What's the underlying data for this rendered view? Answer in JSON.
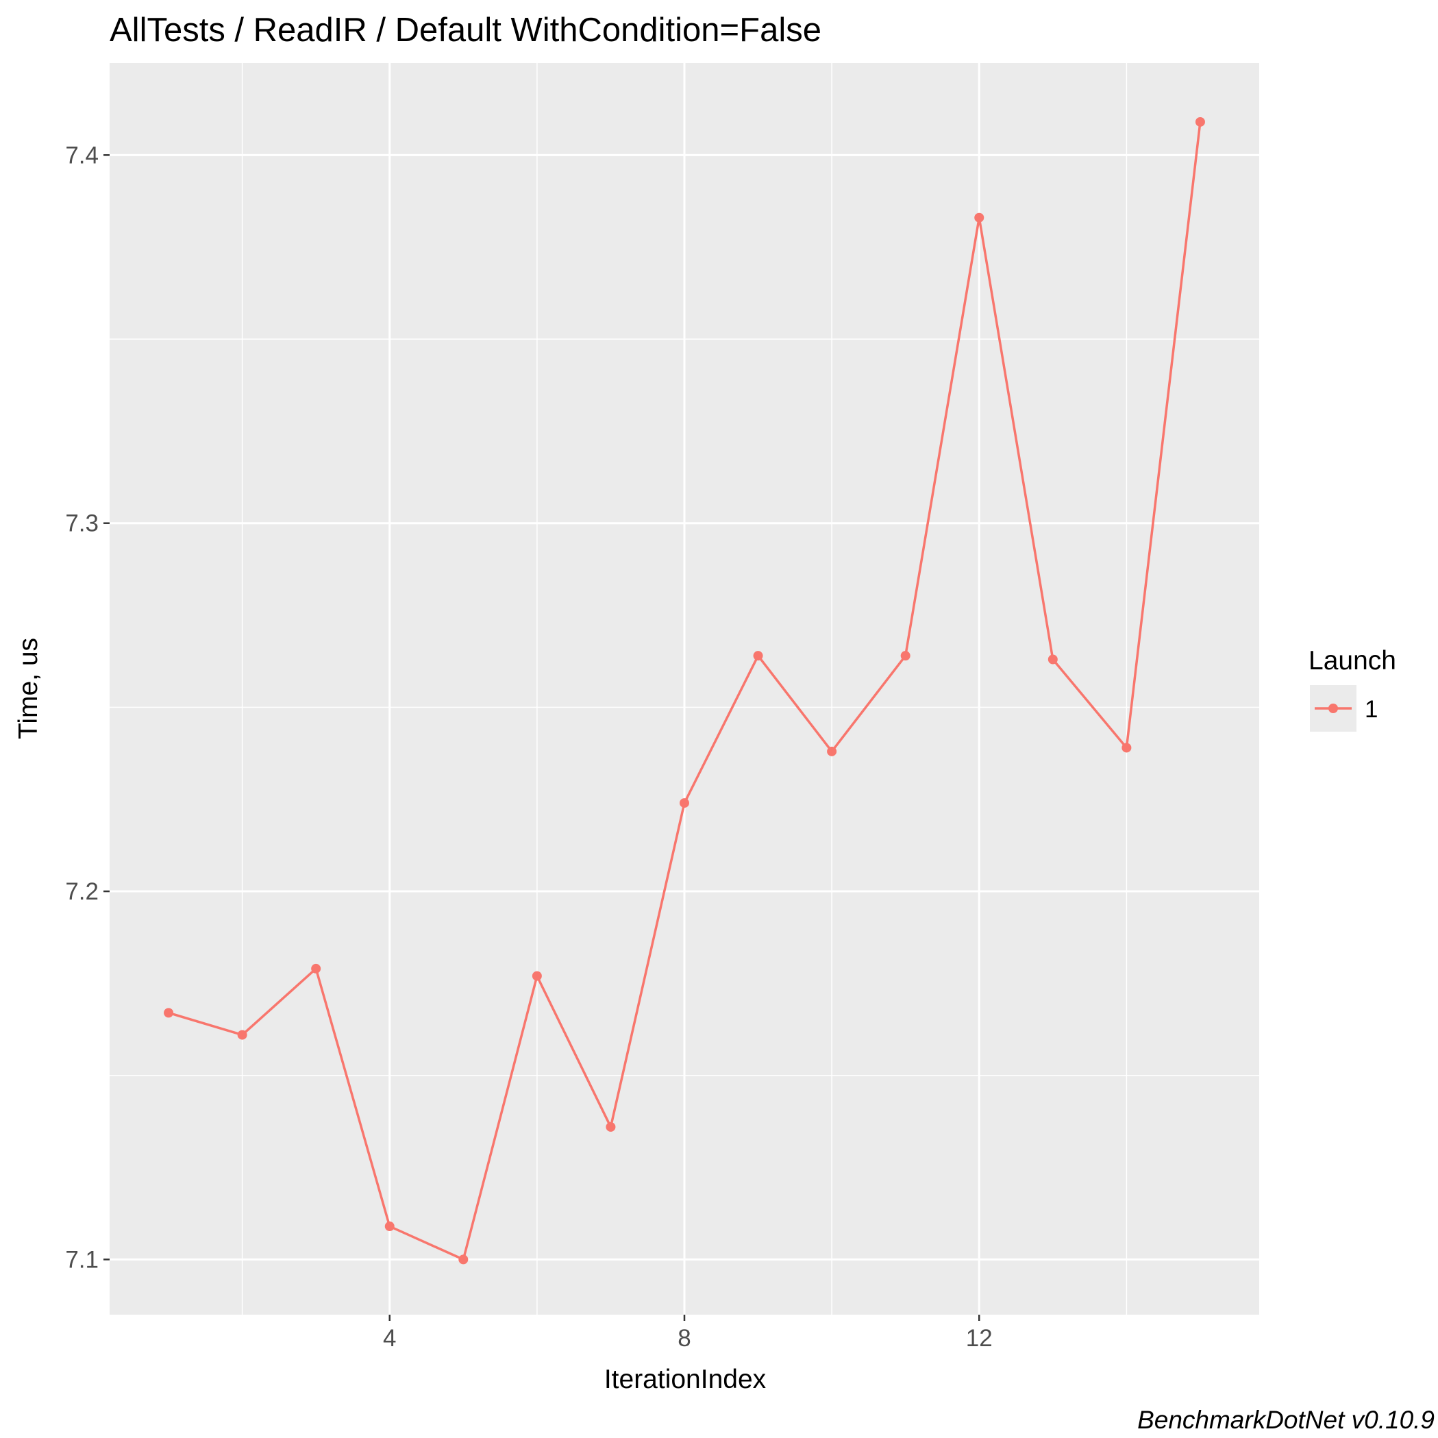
{
  "chart_data": {
    "type": "line",
    "title": "AllTests / ReadIR / Default WithCondition=False",
    "xlabel": "IterationIndex",
    "ylabel": "Time, us",
    "xlim": [
      0.2,
      15.8
    ],
    "ylim": [
      7.085,
      7.425
    ],
    "x_ticks": [
      4,
      8,
      12
    ],
    "y_ticks": [
      7.1,
      7.2,
      7.3,
      7.4
    ],
    "x_tick_labels": [
      "4",
      "8",
      "12"
    ],
    "y_tick_labels": [
      "7.1",
      "7.2",
      "7.3",
      "7.4"
    ],
    "grid": true,
    "legend": {
      "title": "Launch",
      "position": "right"
    },
    "series": [
      {
        "name": "1",
        "color": "#f8766d",
        "x": [
          1,
          2,
          3,
          4,
          5,
          6,
          7,
          8,
          9,
          10,
          11,
          12,
          13,
          14,
          15
        ],
        "values": [
          7.167,
          7.161,
          7.179,
          7.109,
          7.1,
          7.177,
          7.136,
          7.224,
          7.264,
          7.238,
          7.264,
          7.383,
          7.263,
          7.239,
          7.409
        ]
      }
    ],
    "caption": "BenchmarkDotNet v0.10.9"
  }
}
